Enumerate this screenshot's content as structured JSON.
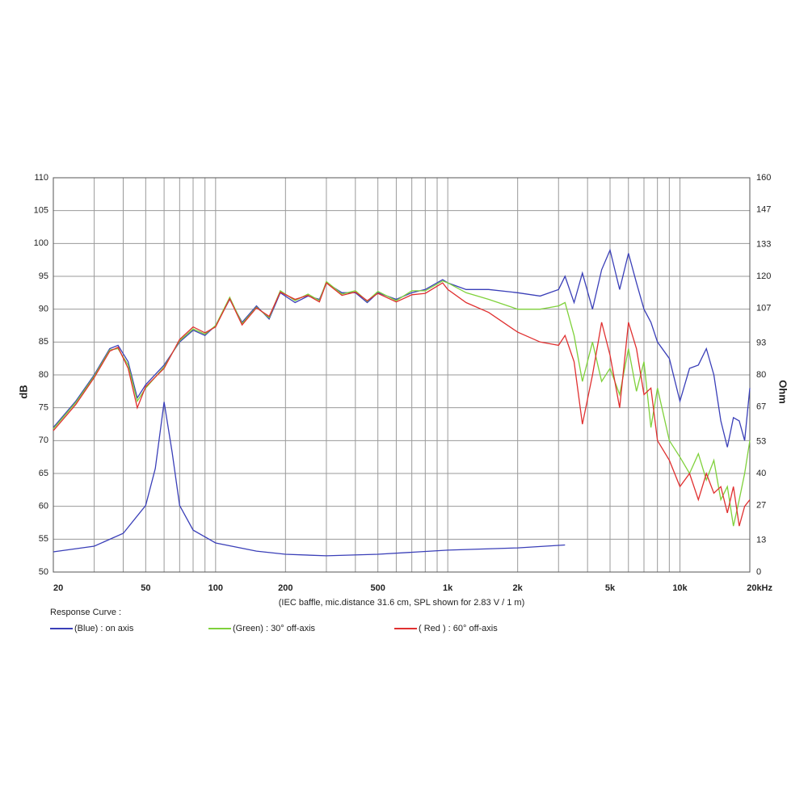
{
  "chart_data": {
    "type": "line",
    "xscale": "log",
    "grid": true,
    "xlabel": "(IEC baffle, mic.distance 31.6 cm, SPL shown for 2.83 V / 1 m)",
    "ylabel": "dB",
    "y2label": "Ohm",
    "legend_title": "Response Curve :",
    "xlim": [
      20,
      20000
    ],
    "xticks": [
      20,
      50,
      100,
      200,
      500,
      {
        "value": 1000,
        "label": "1k"
      },
      {
        "value": 2000,
        "label": "2k"
      },
      {
        "value": 5000,
        "label": "5k"
      },
      {
        "value": 10000,
        "label": "10k"
      },
      {
        "value": 20000,
        "label": "20kHz"
      }
    ],
    "xminorticks": [
      30,
      40,
      60,
      70,
      80,
      90,
      300,
      400,
      600,
      700,
      800,
      900,
      3000,
      4000,
      6000,
      7000,
      8000,
      9000
    ],
    "ylim": [
      50,
      110
    ],
    "yticks": [
      50,
      55,
      60,
      65,
      70,
      75,
      80,
      85,
      90,
      95,
      100,
      105,
      110
    ],
    "y2lim": [
      0,
      160
    ],
    "y2ticks": [
      0,
      13,
      27,
      40,
      53,
      67,
      80,
      93,
      107,
      120,
      133,
      147,
      160
    ],
    "series": [
      {
        "name": "(Blue)  : on axis",
        "color": "#3a3fb8",
        "x": [
          20,
          25,
          30,
          35,
          38,
          42,
          46,
          50,
          60,
          70,
          80,
          90,
          100,
          115,
          130,
          150,
          170,
          190,
          220,
          250,
          280,
          300,
          350,
          400,
          450,
          500,
          600,
          700,
          800,
          950,
          1000,
          1200,
          1500,
          2000,
          2500,
          3000,
          3200,
          3500,
          3800,
          4200,
          4600,
          5000,
          5500,
          6000,
          6500,
          7000,
          7500,
          8000,
          9000,
          10000,
          11000,
          12000,
          13000,
          14000,
          15000,
          16000,
          17000,
          18000,
          19000,
          20000
        ],
        "values": [
          72,
          76,
          80,
          84,
          84.5,
          82,
          76.5,
          78.5,
          81.5,
          85,
          86.8,
          86,
          87.5,
          91.5,
          88,
          90.5,
          88.5,
          92.5,
          91,
          92,
          91.5,
          94,
          92.5,
          92.5,
          91,
          92.5,
          91.5,
          92.5,
          93,
          94.5,
          94,
          93,
          93,
          92.5,
          92,
          93,
          95,
          91,
          95.5,
          90,
          96,
          99,
          93,
          98.5,
          94,
          90,
          88,
          85,
          82.5,
          76,
          81,
          81.5,
          84,
          80,
          73,
          69,
          73.5,
          73,
          70,
          78
        ]
      },
      {
        "name": "(Green) : 30° off-axis",
        "color": "#7fd13b",
        "x": [
          20,
          25,
          30,
          35,
          38,
          42,
          46,
          50,
          60,
          70,
          80,
          90,
          100,
          115,
          130,
          150,
          170,
          190,
          220,
          250,
          280,
          300,
          350,
          400,
          450,
          500,
          600,
          700,
          800,
          950,
          1000,
          1200,
          1500,
          2000,
          2500,
          3000,
          3200,
          3500,
          3800,
          4200,
          4600,
          5000,
          5500,
          6000,
          6500,
          7000,
          7500,
          8000,
          9000,
          10000,
          11000,
          12000,
          13000,
          14000,
          15000,
          16000,
          17000,
          18000,
          19000,
          20000
        ],
        "values": [
          71.8,
          75.8,
          79.8,
          83.8,
          84,
          81.5,
          76,
          78,
          81.2,
          85.2,
          87,
          86.2,
          87.5,
          91.8,
          87.8,
          90.3,
          88.7,
          92.8,
          91.3,
          92.3,
          91.3,
          94.2,
          92.3,
          92.8,
          91.2,
          92.7,
          91.3,
          92.8,
          92.8,
          94.3,
          94,
          92.5,
          91.5,
          90,
          90,
          90.5,
          91,
          86,
          79,
          85,
          79,
          81,
          77,
          84,
          77.5,
          82,
          72,
          78,
          70,
          67.5,
          65,
          68,
          64,
          67,
          61,
          63,
          57,
          61,
          65,
          70
        ]
      },
      {
        "name": "( Red ) : 60° off-axis",
        "color": "#e03030",
        "x": [
          20,
          25,
          30,
          35,
          38,
          42,
          46,
          50,
          60,
          70,
          80,
          90,
          100,
          115,
          130,
          150,
          170,
          190,
          220,
          250,
          280,
          300,
          350,
          400,
          450,
          500,
          600,
          700,
          800,
          950,
          1000,
          1200,
          1500,
          2000,
          2500,
          3000,
          3200,
          3500,
          3800,
          4200,
          4600,
          5000,
          5500,
          6000,
          6500,
          7000,
          7500,
          8000,
          9000,
          10000,
          11000,
          12000,
          13000,
          14000,
          15000,
          16000,
          17000,
          18000,
          19000,
          20000
        ],
        "values": [
          71.5,
          75.5,
          79.6,
          83.6,
          84.2,
          81,
          75,
          78.2,
          81,
          85.4,
          87.3,
          86.4,
          87.3,
          91.6,
          87.6,
          90.2,
          88.9,
          92.6,
          91.5,
          92.1,
          91.1,
          94,
          92.1,
          92.6,
          91.3,
          92.4,
          91.1,
          92.2,
          92.4,
          94,
          93,
          91,
          89.5,
          86.5,
          85,
          84.5,
          86,
          82,
          72.5,
          80,
          88,
          83,
          75,
          88,
          84,
          77,
          78,
          70,
          67,
          63,
          65,
          61,
          65,
          62,
          63,
          59,
          63,
          57,
          60,
          61
        ]
      },
      {
        "color": "#3a3fb8",
        "axis": "y2",
        "x": [
          20,
          30,
          40,
          50,
          55,
          60,
          65,
          70,
          80,
          100,
          150,
          200,
          300,
          500,
          1000,
          2000,
          3200
        ],
        "values": [
          8.2,
          10.5,
          15.7,
          27,
          42,
          69,
          48.5,
          27,
          17,
          11.8,
          8.5,
          7.2,
          6.6,
          7.2,
          8.9,
          9.8,
          11
        ]
      }
    ]
  }
}
